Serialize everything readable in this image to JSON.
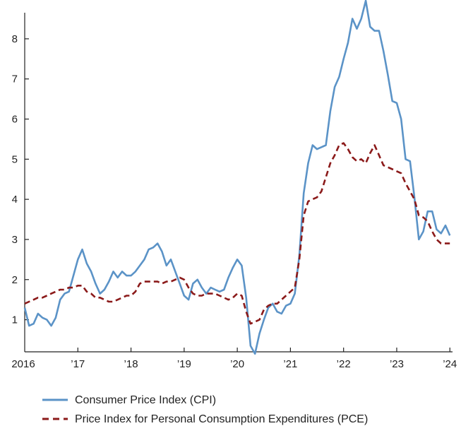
{
  "chart_data": {
    "type": "line",
    "title": "",
    "xlabel": "",
    "ylabel": "",
    "xlim": [
      2016.0,
      2024.05
    ],
    "ylim": [
      0.2,
      8.65
    ],
    "grid": false,
    "legend_position": "bottom",
    "y_ticks": [
      1,
      2,
      3,
      4,
      5,
      6,
      7,
      8
    ],
    "x_ticks": [
      {
        "value": 2016,
        "label": "2016"
      },
      {
        "value": 2017,
        "label": "’17"
      },
      {
        "value": 2018,
        "label": "’18"
      },
      {
        "value": 2019,
        "label": "’19"
      },
      {
        "value": 2020,
        "label": "’20"
      },
      {
        "value": 2021,
        "label": "’21"
      },
      {
        "value": 2022,
        "label": "’22"
      },
      {
        "value": 2023,
        "label": "’23"
      },
      {
        "value": 2024,
        "label": "’24"
      }
    ],
    "series": [
      {
        "name": "Consumer Price Index (CPI)",
        "color": "#5b93c7",
        "dash": "solid",
        "x": [
          2016.0,
          2016.083,
          2016.167,
          2016.25,
          2016.333,
          2016.417,
          2016.5,
          2016.583,
          2016.667,
          2016.75,
          2016.833,
          2016.917,
          2017.0,
          2017.083,
          2017.167,
          2017.25,
          2017.333,
          2017.417,
          2017.5,
          2017.583,
          2017.667,
          2017.75,
          2017.833,
          2017.917,
          2018.0,
          2018.083,
          2018.167,
          2018.25,
          2018.333,
          2018.417,
          2018.5,
          2018.583,
          2018.667,
          2018.75,
          2018.833,
          2018.917,
          2019.0,
          2019.083,
          2019.167,
          2019.25,
          2019.333,
          2019.417,
          2019.5,
          2019.583,
          2019.667,
          2019.75,
          2019.833,
          2019.917,
          2020.0,
          2020.083,
          2020.167,
          2020.25,
          2020.333,
          2020.417,
          2020.5,
          2020.583,
          2020.667,
          2020.75,
          2020.833,
          2020.917,
          2021.0,
          2021.083,
          2021.167,
          2021.25,
          2021.333,
          2021.417,
          2021.5,
          2021.583,
          2021.667,
          2021.75,
          2021.833,
          2021.917,
          2022.0,
          2022.083,
          2022.167,
          2022.25,
          2022.333,
          2022.417,
          2022.5,
          2022.583,
          2022.667,
          2022.75,
          2022.833,
          2022.917,
          2023.0,
          2023.083,
          2023.167,
          2023.25,
          2023.333,
          2023.417,
          2023.5,
          2023.583,
          2023.667,
          2023.75,
          2023.833,
          2023.917,
          2024.0
        ],
        "values": [
          1.3,
          0.85,
          0.9,
          1.15,
          1.05,
          1.0,
          0.85,
          1.05,
          1.5,
          1.65,
          1.7,
          2.1,
          2.5,
          2.75,
          2.4,
          2.2,
          1.9,
          1.65,
          1.75,
          1.95,
          2.2,
          2.05,
          2.2,
          2.1,
          2.1,
          2.2,
          2.35,
          2.5,
          2.75,
          2.8,
          2.9,
          2.7,
          2.35,
          2.5,
          2.2,
          1.9,
          1.6,
          1.5,
          1.9,
          2.0,
          1.8,
          1.65,
          1.8,
          1.75,
          1.7,
          1.75,
          2.05,
          2.3,
          2.5,
          2.35,
          1.55,
          0.35,
          0.15,
          0.65,
          1.0,
          1.3,
          1.4,
          1.2,
          1.15,
          1.35,
          1.4,
          1.65,
          2.6,
          4.15,
          4.9,
          5.35,
          5.25,
          5.3,
          5.35,
          6.2,
          6.8,
          7.05,
          7.5,
          7.9,
          8.5,
          8.25,
          8.5,
          8.95,
          8.3,
          8.2,
          8.2,
          7.7,
          7.1,
          6.45,
          6.4,
          6.0,
          5.0,
          4.95,
          4.05,
          3.0,
          3.2,
          3.7,
          3.7,
          3.25,
          3.15,
          3.35,
          3.1
        ]
      },
      {
        "name": "Price Index for Personal Consumption Expenditures (PCE)",
        "color": "#8b1a1a",
        "dash": "dashed",
        "x": [
          2016.0,
          2016.083,
          2016.167,
          2016.25,
          2016.333,
          2016.417,
          2016.5,
          2016.583,
          2016.667,
          2016.75,
          2016.833,
          2016.917,
          2017.0,
          2017.083,
          2017.167,
          2017.25,
          2017.333,
          2017.417,
          2017.5,
          2017.583,
          2017.667,
          2017.75,
          2017.833,
          2017.917,
          2018.0,
          2018.083,
          2018.167,
          2018.25,
          2018.333,
          2018.417,
          2018.5,
          2018.583,
          2018.667,
          2018.75,
          2018.833,
          2018.917,
          2019.0,
          2019.083,
          2019.167,
          2019.25,
          2019.333,
          2019.417,
          2019.5,
          2019.583,
          2019.667,
          2019.75,
          2019.833,
          2019.917,
          2020.0,
          2020.083,
          2020.167,
          2020.25,
          2020.333,
          2020.417,
          2020.5,
          2020.583,
          2020.667,
          2020.75,
          2020.833,
          2020.917,
          2021.0,
          2021.083,
          2021.167,
          2021.25,
          2021.333,
          2021.417,
          2021.5,
          2021.583,
          2021.667,
          2021.75,
          2021.833,
          2021.917,
          2022.0,
          2022.083,
          2022.167,
          2022.25,
          2022.333,
          2022.417,
          2022.5,
          2022.583,
          2022.667,
          2022.75,
          2022.833,
          2022.917,
          2023.0,
          2023.083,
          2023.167,
          2023.25,
          2023.333,
          2023.417,
          2023.5,
          2023.583,
          2023.667,
          2023.75,
          2023.833,
          2023.917,
          2024.0
        ],
        "values": [
          1.4,
          1.45,
          1.5,
          1.55,
          1.55,
          1.6,
          1.65,
          1.7,
          1.75,
          1.75,
          1.8,
          1.8,
          1.85,
          1.85,
          1.7,
          1.65,
          1.55,
          1.55,
          1.5,
          1.45,
          1.45,
          1.5,
          1.55,
          1.6,
          1.6,
          1.7,
          1.9,
          1.95,
          1.95,
          1.95,
          1.95,
          1.9,
          1.95,
          1.95,
          2.0,
          2.05,
          2.0,
          1.8,
          1.65,
          1.6,
          1.6,
          1.65,
          1.65,
          1.65,
          1.6,
          1.55,
          1.5,
          1.55,
          1.65,
          1.6,
          1.2,
          0.9,
          0.95,
          1.0,
          1.25,
          1.35,
          1.4,
          1.4,
          1.5,
          1.6,
          1.7,
          1.8,
          2.5,
          3.6,
          3.95,
          4.0,
          4.05,
          4.2,
          4.55,
          4.9,
          5.1,
          5.35,
          5.4,
          5.25,
          5.05,
          4.95,
          5.0,
          4.9,
          5.15,
          5.35,
          5.1,
          4.85,
          4.8,
          4.75,
          4.7,
          4.65,
          4.4,
          4.2,
          4.0,
          3.6,
          3.55,
          3.45,
          3.2,
          3.0,
          2.9,
          2.9,
          2.9
        ]
      }
    ]
  }
}
